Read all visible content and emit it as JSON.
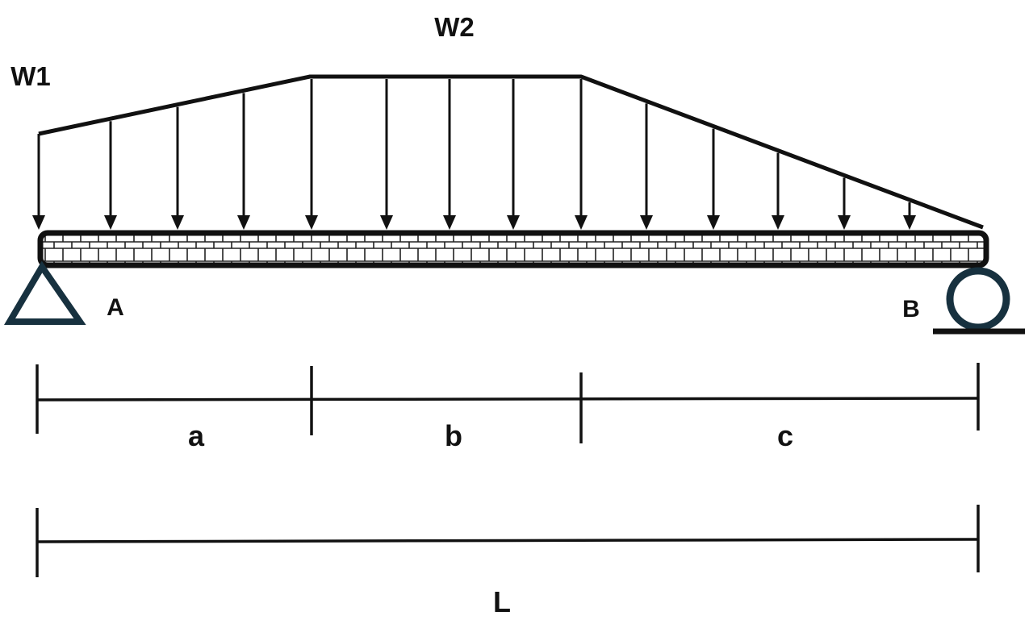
{
  "load": {
    "w1_label": "W1",
    "w2_label": "W2"
  },
  "supports": {
    "left_label": "A",
    "right_label": "B",
    "left_type": "pin-support-triangle",
    "right_type": "roller-support-circle"
  },
  "dimensions": {
    "segment_labels": [
      "a",
      "b",
      "c"
    ],
    "total_label": "L"
  },
  "colors": {
    "line": "#111111",
    "support": "#17313f",
    "beam_fill": "#ffffff"
  }
}
